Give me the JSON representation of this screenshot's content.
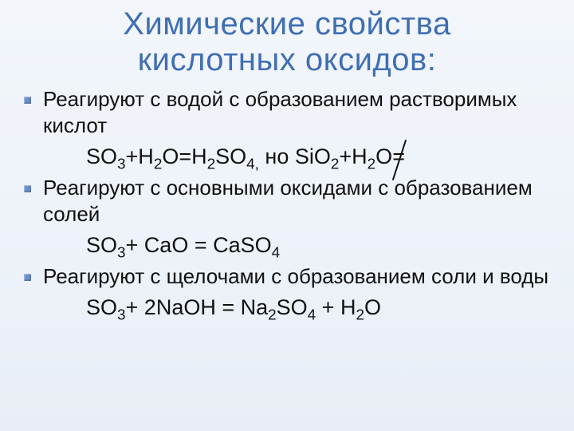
{
  "title_line1": "Химические свойства",
  "title_line2": "кислотных оксидов:",
  "colors": {
    "title": "#3f6eb4",
    "bullet": "#6a8fcf",
    "text": "#111111",
    "bg_top": "#f2f6fb",
    "bg_bottom": "#e9eef6"
  },
  "typography": {
    "title_fontsize": 40,
    "body_fontsize": 26,
    "formula_fontsize": 27,
    "font_family": "Arial"
  },
  "items": [
    {
      "text": "Реагируют с водой с образованием растворимых  кислот",
      "formula": "SO<sub>3</sub>+H<sub>2</sub>O=H<sub>2</sub>SO<sub>4,</sub> но SiO<sub>2</sub>+H<sub>2</sub>O<span class=\"neq\">=</span>"
    },
    {
      "text": "Реагируют с основными оксидами с образованием солей",
      "formula": "SO<sub>3</sub>+ CaO = СaSO<sub>4</sub>"
    },
    {
      "text": "Реагируют с  щелочами с образованием соли и воды",
      "formula": "SO<sub>3</sub>+ 2NaOH = Na<sub>2</sub>SO<sub>4</sub> + H<sub>2</sub>O"
    }
  ]
}
